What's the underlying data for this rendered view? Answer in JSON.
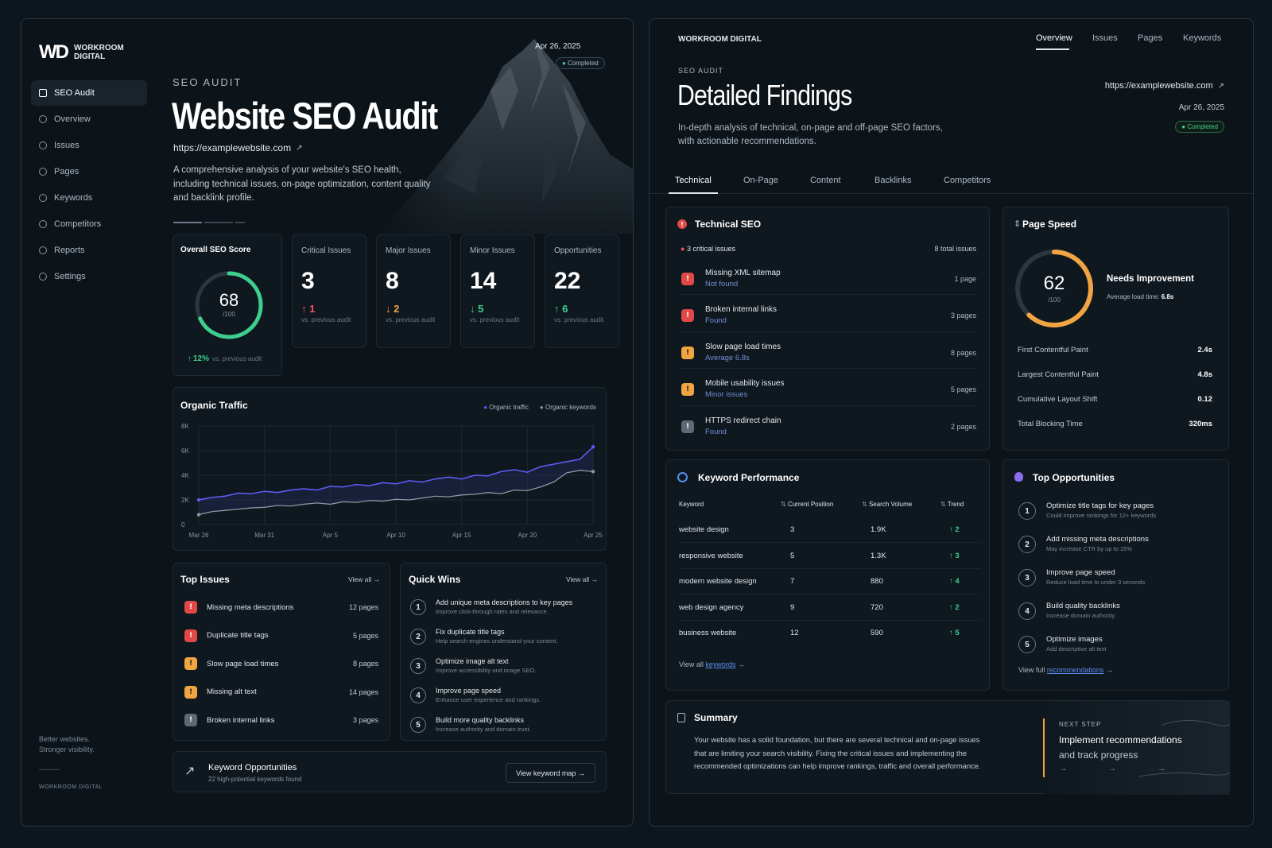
{
  "brand": {
    "logo": "WD",
    "name_line1": "WORKROOM",
    "name_line2": "DIGITAL",
    "footer_tagline_1": "Better websites.",
    "footer_tagline_2": "Stronger visibility.",
    "footer_name": "WORKROOM DIGITAL"
  },
  "sidebar": {
    "items": [
      {
        "label": "SEO Audit"
      },
      {
        "label": "Overview"
      },
      {
        "label": "Issues"
      },
      {
        "label": "Pages"
      },
      {
        "label": "Keywords"
      },
      {
        "label": "Competitors"
      },
      {
        "label": "Reports"
      },
      {
        "label": "Settings"
      }
    ]
  },
  "hero": {
    "date": "Apr 26, 2025",
    "badge": "Completed",
    "eyebrow": "SEO AUDIT",
    "title": "Website SEO Audit",
    "url": "https://examplewebsite.com",
    "desc_1": "A comprehensive analysis of your website's SEO health,",
    "desc_2": "including technical issues, on-page optimization, content quality",
    "desc_3": "and backlink profile."
  },
  "score": {
    "label": "Overall SEO Score",
    "value": "68",
    "max": "/100",
    "fraction": 0.68,
    "delta": "12%",
    "delta_note": "vs. previous audit"
  },
  "stats": [
    {
      "label": "Critical Issues",
      "value": "3",
      "delta": "1",
      "dir": "up",
      "note": "vs. previous audit"
    },
    {
      "label": "Major Issues",
      "value": "8",
      "delta": "2",
      "dir": "down",
      "note": "vs. previous audit"
    },
    {
      "label": "Minor Issues",
      "value": "14",
      "delta": "5",
      "dir": "down",
      "note": "vs. previous audit"
    },
    {
      "label": "Opportunities",
      "value": "22",
      "delta": "6",
      "dir": "up",
      "note": "vs. previous audit"
    }
  ],
  "chart_data": {
    "type": "line",
    "title": "Organic Traffic",
    "x": [
      "Mar 26",
      "Mar 27",
      "Mar 28",
      "Mar 29",
      "Mar 30",
      "Mar 31",
      "Apr 1",
      "Apr 2",
      "Apr 3",
      "Apr 4",
      "Apr 5",
      "Apr 6",
      "Apr 7",
      "Apr 8",
      "Apr 9",
      "Apr 10",
      "Apr 11",
      "Apr 12",
      "Apr 13",
      "Apr 14",
      "Apr 15",
      "Apr 16",
      "Apr 17",
      "Apr 18",
      "Apr 19",
      "Apr 20",
      "Apr 21",
      "Apr 22",
      "Apr 23",
      "Apr 24",
      "Apr 25"
    ],
    "xticks": [
      "Mar 26",
      "Mar 31",
      "Apr 5",
      "Apr 10",
      "Apr 15",
      "Apr 20",
      "Apr 25"
    ],
    "yticks": [
      "0",
      "2K",
      "4K",
      "6K",
      "8K"
    ],
    "ylim": [
      0,
      8000
    ],
    "grid": true,
    "legend": "top-right",
    "series": [
      {
        "name": "Organic traffic",
        "color": "#5b5bf0",
        "values": [
          2000,
          2200,
          2300,
          2550,
          2500,
          2700,
          2600,
          2800,
          2900,
          2800,
          3100,
          3050,
          3250,
          3150,
          3400,
          3300,
          3550,
          3450,
          3700,
          3850,
          3700,
          4000,
          3950,
          4300,
          4450,
          4250,
          4700,
          4900,
          5100,
          5300,
          6300
        ]
      },
      {
        "name": "Organic keywords",
        "color": "#8c96a2",
        "values": [
          800,
          1050,
          1150,
          1250,
          1350,
          1400,
          1550,
          1500,
          1650,
          1750,
          1650,
          1850,
          1800,
          1950,
          1900,
          2050,
          2000,
          2150,
          2300,
          2250,
          2400,
          2450,
          2600,
          2500,
          2800,
          2750,
          3050,
          3450,
          4200,
          4400,
          4300
        ]
      }
    ]
  },
  "top_issues": {
    "title": "Top Issues",
    "view_all": "View all →",
    "items": [
      {
        "label": "Missing meta descriptions",
        "count": "12 pages",
        "sev": "red"
      },
      {
        "label": "Duplicate title tags",
        "count": "5 pages",
        "sev": "red"
      },
      {
        "label": "Slow page load times",
        "count": "8 pages",
        "sev": "orange"
      },
      {
        "label": "Missing alt text",
        "count": "14 pages",
        "sev": "orange"
      },
      {
        "label": "Broken internal links",
        "count": "3 pages",
        "sev": "gray"
      }
    ]
  },
  "quick_wins": {
    "title": "Quick Wins",
    "view_all": "View all →",
    "items": [
      {
        "n": "1",
        "title": "Add unique meta descriptions to key pages",
        "sub": "Improve click-through rates and relevance."
      },
      {
        "n": "2",
        "title": "Fix duplicate title tags",
        "sub": "Help search engines understand your content."
      },
      {
        "n": "3",
        "title": "Optimize image alt text",
        "sub": "Improve accessibility and image SEO."
      },
      {
        "n": "4",
        "title": "Improve page speed",
        "sub": "Enhance user experience and rankings."
      },
      {
        "n": "5",
        "title": "Build more quality backlinks",
        "sub": "Increase authority and domain trust."
      }
    ]
  },
  "kw_opps": {
    "title": "Keyword Opportunities",
    "sub": "22 high-potential keywords found",
    "button": "View keyword map →"
  },
  "right": {
    "brand": "WORKROOM DIGITAL",
    "nav": [
      "Overview",
      "Issues",
      "Pages",
      "Keywords"
    ],
    "eyebrow": "SEO AUDIT",
    "title": "Detailed Findings",
    "desc_1": "In-depth analysis of technical, on-page and off-page SEO factors,",
    "desc_2": "with actionable recommendations.",
    "url": "https://examplewebsite.com",
    "date": "Apr 26, 2025",
    "badge": "Completed",
    "tabs": [
      "Technical",
      "On-Page",
      "Content",
      "Backlinks",
      "Competitors"
    ]
  },
  "technical": {
    "title": "Technical SEO",
    "critical": "3 critical issues",
    "total": "8 total issues",
    "items": [
      {
        "title": "Missing XML sitemap",
        "status": "Not found",
        "count": "1 page",
        "sev": "red"
      },
      {
        "title": "Broken internal links",
        "status": "Found",
        "count": "3 pages",
        "sev": "red"
      },
      {
        "title": "Slow page load times",
        "status": "Average 6.8s",
        "count": "8 pages",
        "sev": "orange"
      },
      {
        "title": "Mobile usability issues",
        "status": "Minor issues",
        "count": "5 pages",
        "sev": "orange"
      },
      {
        "title": "HTTPS redirect chain",
        "status": "Found",
        "count": "2 pages",
        "sev": "gray"
      }
    ]
  },
  "speed": {
    "title": "Page Speed",
    "value": "62",
    "max": "/100",
    "fraction": 0.62,
    "status": "Needs Improvement",
    "avg_label": "Average load time:",
    "avg_value": "6.8s",
    "metrics": [
      {
        "label": "First Contentful Paint",
        "value": "2.4s"
      },
      {
        "label": "Largest Contentful Paint",
        "value": "4.8s"
      },
      {
        "label": "Cumulative Layout Shift",
        "value": "0.12"
      },
      {
        "label": "Total Blocking Time",
        "value": "320ms"
      }
    ]
  },
  "keywords": {
    "title": "Keyword Performance",
    "headers": [
      "Keyword",
      "Current Position",
      "Search Volume",
      "Trend"
    ],
    "rows": [
      {
        "kw": "website design",
        "pos": "3",
        "vol": "1.9K",
        "trend": "2"
      },
      {
        "kw": "responsive website",
        "pos": "5",
        "vol": "1.3K",
        "trend": "3"
      },
      {
        "kw": "modern website design",
        "pos": "7",
        "vol": "880",
        "trend": "4"
      },
      {
        "kw": "web design agency",
        "pos": "9",
        "vol": "720",
        "trend": "2"
      },
      {
        "kw": "business website",
        "pos": "12",
        "vol": "590",
        "trend": "5"
      }
    ],
    "view_all_1": "View all",
    "view_all_2": "keywords",
    "view_all_arrow": "→"
  },
  "opps": {
    "title": "Top Opportunities",
    "items": [
      {
        "n": "1",
        "title": "Optimize title tags for key pages",
        "sub": "Could improve rankings for 12+ keywords"
      },
      {
        "n": "2",
        "title": "Add missing meta descriptions",
        "sub": "May increase CTR by up to 15%"
      },
      {
        "n": "3",
        "title": "Improve page speed",
        "sub": "Reduce load time to under 3 seconds"
      },
      {
        "n": "4",
        "title": "Build quality backlinks",
        "sub": "Increase domain authority"
      },
      {
        "n": "5",
        "title": "Optimize images",
        "sub": "Add descriptive alt text"
      }
    ],
    "view_full_1": "View full",
    "view_full_2": "recommendations",
    "view_full_arrow": "→"
  },
  "summary": {
    "title": "Summary",
    "line1": "Your website has a solid foundation, but there are several technical and on-page issues",
    "line2": "that are limiting your search visibility. Fixing the critical issues and implementing the",
    "line3": "recommended optimizations can help improve rankings, traffic and overall performance.",
    "next_label": "NEXT STEP",
    "next_title": "Implement recommendations",
    "next_sub": "and track progress"
  },
  "colors": {
    "accent_green": "#3ecf8e",
    "accent_orange": "#f0a442",
    "accent_red": "#e14848",
    "accent_blue": "#5b5bf0"
  }
}
